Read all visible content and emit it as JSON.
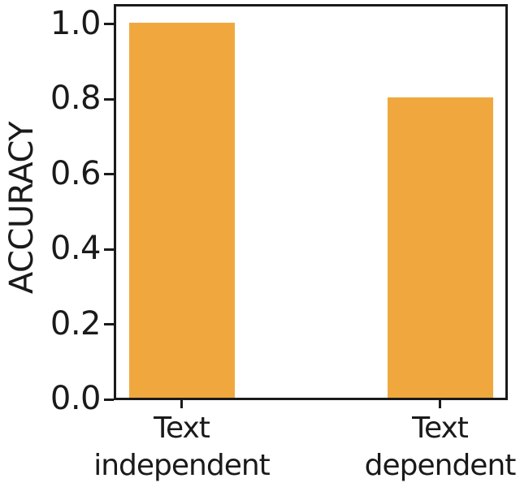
{
  "chart_data": {
    "type": "bar",
    "categories": [
      [
        "Text",
        "independent"
      ],
      [
        "Text",
        "dependent"
      ]
    ],
    "values": [
      1.0,
      0.8
    ],
    "ylabel": "ACCURACY",
    "ytick_labels": [
      "0.0",
      "0.2",
      "0.4",
      "0.6",
      "0.8",
      "1.0"
    ],
    "ylim": [
      0.0,
      1.04
    ],
    "grid": false,
    "legend": "none",
    "bar_color": "#F0A83E",
    "axis_color": "#1a1a1a",
    "text_color": "#1a1a1a",
    "background": "#ffffff"
  }
}
